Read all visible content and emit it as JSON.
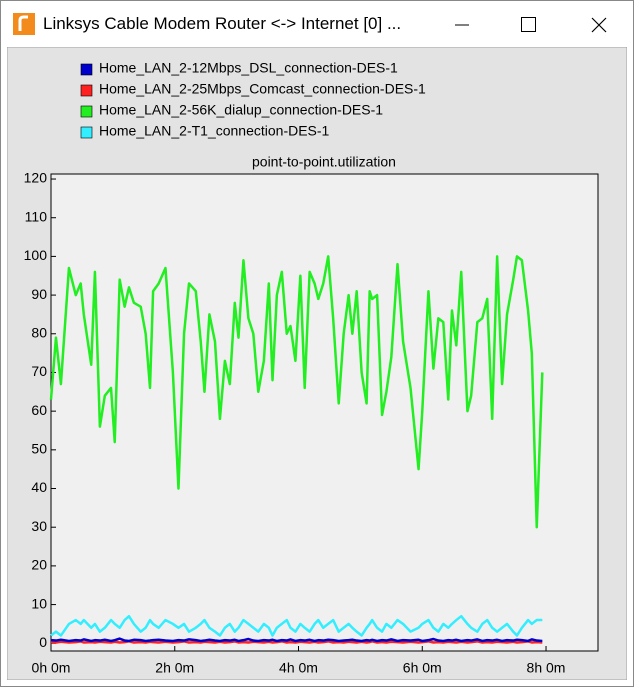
{
  "window": {
    "title": "Linksys Cable Modem Router <-> Internet [0] ..."
  },
  "chart_data": {
    "type": "line",
    "title": "point-to-point.utilization",
    "x": [
      0,
      0.08,
      0.16,
      0.29,
      0.4,
      0.48,
      0.53,
      0.65,
      0.71,
      0.79,
      0.87,
      0.97,
      1.03,
      1.11,
      1.19,
      1.26,
      1.34,
      1.45,
      1.53,
      1.6,
      1.65,
      1.74,
      1.85,
      1.97,
      2.06,
      2.15,
      2.23,
      2.34,
      2.42,
      2.48,
      2.56,
      2.65,
      2.73,
      2.81,
      2.89,
      2.97,
      3.03,
      3.11,
      3.19,
      3.27,
      3.35,
      3.44,
      3.52,
      3.58,
      3.65,
      3.73,
      3.81,
      3.87,
      3.95,
      4.03,
      4.1,
      4.18,
      4.26,
      4.32,
      4.4,
      4.48,
      4.56,
      4.65,
      4.73,
      4.81,
      4.87,
      4.94,
      5.02,
      5.1,
      5.15,
      5.19,
      5.27,
      5.35,
      5.42,
      5.5,
      5.6,
      5.69,
      5.81,
      5.94,
      6,
      6.1,
      6.18,
      6.26,
      6.34,
      6.42,
      6.48,
      6.55,
      6.63,
      6.73,
      6.79,
      6.89,
      6.97,
      7.05,
      7.13,
      7.21,
      7.29,
      7.37,
      7.47,
      7.53,
      7.61,
      7.71,
      7.77,
      7.85,
      7.94
    ],
    "series": [
      {
        "name": "Home_LAN_2-12Mbps_DSL_connection-DES-1",
        "color": "#0000cc",
        "values": [
          0.8,
          0.7,
          0.9,
          0.6,
          0.8,
          0.7,
          1.0,
          0.6,
          0.8,
          0.7,
          0.9,
          0.6,
          0.8,
          1.2,
          0.7,
          0.6,
          0.9,
          0.8,
          0.6,
          0.7,
          0.8,
          0.9,
          0.7,
          0.6,
          0.8,
          0.7,
          1.0,
          0.8,
          0.6,
          0.7,
          0.9,
          0.7,
          0.6,
          0.8,
          0.7,
          0.9,
          0.6,
          0.8,
          1.1,
          0.7,
          0.6,
          0.8,
          0.7,
          0.9,
          0.6,
          0.8,
          0.7,
          1.0,
          0.6,
          0.8,
          0.7,
          0.9,
          0.6,
          0.8,
          0.7,
          0.9,
          0.8,
          0.6,
          0.7,
          0.8,
          0.9,
          0.7,
          0.6,
          0.8,
          0.7,
          0.9,
          0.6,
          0.8,
          0.7,
          1.0,
          0.6,
          0.8,
          0.7,
          0.9,
          0.6,
          0.8,
          1.1,
          0.7,
          0.6,
          0.8,
          0.7,
          0.9,
          0.6,
          0.8,
          0.7,
          1.0,
          0.6,
          0.8,
          0.7,
          0.9,
          0.6,
          0.8,
          0.7,
          0.9,
          0.8,
          0.6,
          1.0,
          0.7,
          0.6
        ]
      },
      {
        "name": "Home_LAN_2-25Mbps_Comcast_connection-DES-1",
        "color": "#ff2020",
        "values": [
          0.3,
          0.2,
          0.4,
          0.2,
          0.3,
          0.5,
          0.2,
          0.3,
          0.2,
          0.4,
          0.3,
          0.2,
          0.4,
          0.2,
          0.3,
          0.5,
          0.2,
          0.3,
          0.2,
          0.4,
          0.3,
          0.2,
          0.4,
          0.2,
          0.3,
          0.5,
          0.2,
          0.3,
          0.2,
          0.4,
          0.3,
          0.2,
          0.4,
          0.2,
          0.3,
          0.5,
          0.2,
          0.3,
          0.2,
          0.4,
          0.3,
          0.2,
          0.4,
          0.2,
          0.3,
          0.5,
          0.2,
          0.3,
          0.2,
          0.4,
          0.3,
          0.2,
          0.4,
          0.2,
          0.3,
          0.5,
          0.2,
          0.3,
          0.2,
          0.4,
          0.3,
          0.2,
          0.4,
          0.2,
          0.3,
          0.5,
          0.2,
          0.3,
          0.2,
          0.4,
          0.3,
          0.2,
          0.4,
          0.2,
          0.3,
          0.5,
          0.2,
          0.3,
          0.2,
          0.4,
          0.3,
          0.2,
          0.4,
          0.2,
          0.3,
          0.5,
          0.2,
          0.3,
          0.2,
          0.4,
          0.3,
          0.2,
          0.4,
          0.2,
          0.3,
          0.5,
          0.2,
          0.3,
          0.2
        ]
      },
      {
        "name": "Home_LAN_2-56K_dialup_connection-DES-1",
        "color": "#22ee22",
        "values": [
          63,
          79,
          67,
          97,
          90,
          93,
          85,
          72,
          96,
          56,
          64,
          66,
          52,
          94,
          87,
          92,
          88,
          87,
          80,
          66,
          91,
          93,
          97,
          70,
          40,
          80,
          93,
          91,
          78,
          65,
          85,
          78,
          58,
          73,
          67,
          88,
          79,
          99,
          84,
          80,
          65,
          73,
          93,
          68,
          90,
          96,
          80,
          82,
          73,
          95,
          66,
          96,
          93,
          89,
          93,
          100,
          84,
          62,
          80,
          90,
          80,
          91,
          70,
          62,
          91,
          89,
          90,
          59,
          65,
          74,
          98,
          78,
          66,
          45,
          60,
          91,
          71,
          84,
          83,
          63,
          86,
          77,
          96,
          60,
          64,
          83,
          84,
          89,
          58,
          100,
          67,
          85,
          94,
          100,
          99,
          86,
          75,
          30,
          70
        ]
      },
      {
        "name": "Home_LAN_2-T1_connection-DES-1",
        "color": "#33eeff",
        "values": [
          2,
          3,
          2,
          5,
          6,
          5,
          6,
          4,
          5,
          3,
          4,
          6,
          5,
          4,
          6,
          7,
          5,
          3,
          4,
          6,
          5,
          4,
          6,
          5,
          4,
          5,
          3,
          4,
          5,
          6,
          4,
          3,
          2,
          4,
          5,
          3,
          4,
          6,
          5,
          4,
          3,
          5,
          4,
          2,
          4,
          5,
          6,
          4,
          3,
          5,
          4,
          3,
          5,
          6,
          4,
          5,
          6,
          3,
          4,
          5,
          4,
          3,
          2,
          4,
          5,
          6,
          4,
          3,
          5,
          4,
          6,
          5,
          3,
          4,
          5,
          6,
          4,
          3,
          5,
          4,
          5,
          6,
          7,
          5,
          4,
          3,
          5,
          6,
          4,
          3,
          4,
          5,
          3,
          2,
          4,
          6,
          5,
          6,
          6
        ]
      }
    ],
    "draw_order": [
      3,
      2,
      1,
      0
    ],
    "xlim": [
      0,
      8.84
    ],
    "ylim": [
      -2,
      121.3
    ],
    "xticks": [
      {
        "value": 0,
        "label": "0h 0m"
      },
      {
        "value": 2,
        "label": "2h 0m"
      },
      {
        "value": 4,
        "label": "4h 0m"
      },
      {
        "value": 6,
        "label": "6h 0m"
      },
      {
        "value": 8,
        "label": "8h 0m"
      }
    ],
    "yticks": [
      0,
      10,
      20,
      30,
      40,
      50,
      60,
      70,
      80,
      90,
      100,
      110,
      120
    ]
  }
}
